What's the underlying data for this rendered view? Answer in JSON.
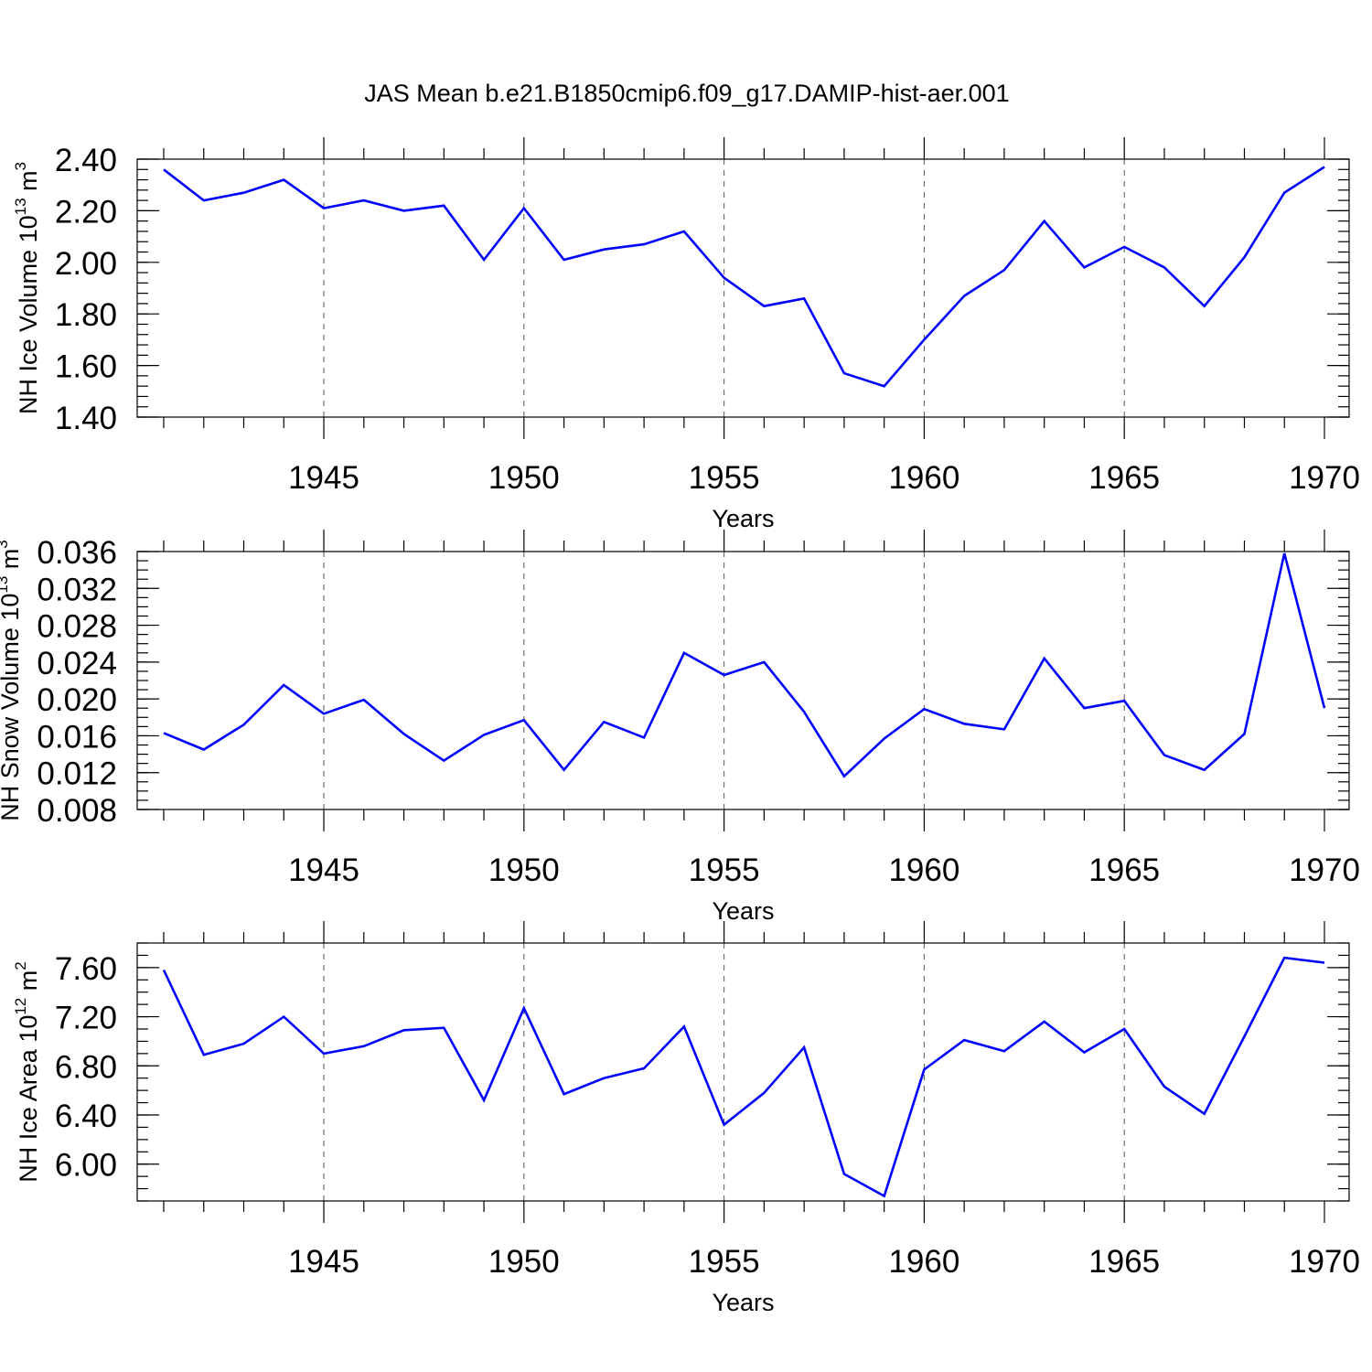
{
  "title": "JAS Mean b.e21.B1850cmip6.f09_g17.DAMIP-hist-aer.001",
  "colors": {
    "series": "#0000ff",
    "axes": "#000000",
    "grid": "#555555"
  },
  "panels": [
    {
      "ylabel": {
        "text": "NH Ice Volume 10",
        "exp": "13",
        "unit": " m",
        "unit_exp": "3"
      },
      "xlabel": "Years"
    },
    {
      "ylabel": {
        "text": "NH Snow Volume 10",
        "exp": "13",
        "unit": " m",
        "unit_exp": "3"
      },
      "xlabel": "Years"
    },
    {
      "ylabel": {
        "text": "NH Ice Area 10",
        "exp": "12",
        "unit": " m",
        "unit_exp": "2"
      },
      "xlabel": "Years"
    }
  ],
  "chart_data": [
    {
      "type": "line",
      "title": "JAS Mean b.e21.B1850cmip6.f09_g17.DAMIP-hist-aer.001",
      "xlabel": "Years",
      "ylabel": "NH Ice Volume 10^13 m^3",
      "xlim": [
        1941,
        1970
      ],
      "ylim": [
        1.4,
        2.4
      ],
      "x_ticks": [
        1945,
        1950,
        1955,
        1960,
        1965,
        1970
      ],
      "x_minor_step": 1,
      "y_ticks": [
        1.4,
        1.6,
        1.8,
        2.0,
        2.2,
        2.4
      ],
      "y_tick_labels": [
        "1.40",
        "1.60",
        "1.80",
        "2.00",
        "2.20",
        "2.40"
      ],
      "y_minor_step": 0.04,
      "grid": "vertical dashed at major x ticks",
      "series": [
        {
          "color": "#0000ff",
          "x": [
            1941,
            1942,
            1943,
            1944,
            1945,
            1946,
            1947,
            1948,
            1949,
            1950,
            1951,
            1952,
            1953,
            1954,
            1955,
            1956,
            1957,
            1958,
            1959,
            1960,
            1961,
            1962,
            1963,
            1964,
            1965,
            1966,
            1967,
            1968,
            1969,
            1970
          ],
          "y": [
            2.36,
            2.24,
            2.27,
            2.32,
            2.21,
            2.24,
            2.2,
            2.22,
            2.01,
            2.21,
            2.01,
            2.05,
            2.07,
            2.12,
            1.94,
            1.83,
            1.86,
            1.57,
            1.52,
            1.7,
            1.87,
            1.97,
            2.16,
            1.98,
            2.06,
            1.98,
            1.83,
            2.02,
            2.27,
            2.37
          ]
        }
      ]
    },
    {
      "type": "line",
      "xlabel": "Years",
      "ylabel": "NH Snow Volume 10^13 m^3",
      "xlim": [
        1941,
        1970
      ],
      "ylim": [
        0.008,
        0.036
      ],
      "x_ticks": [
        1945,
        1950,
        1955,
        1960,
        1965,
        1970
      ],
      "x_minor_step": 1,
      "y_ticks": [
        0.008,
        0.012,
        0.016,
        0.02,
        0.024,
        0.028,
        0.032,
        0.036
      ],
      "y_tick_labels": [
        "0.008",
        "0.012",
        "0.016",
        "0.020",
        "0.024",
        "0.028",
        "0.032",
        "0.036"
      ],
      "y_minor_step": 0.001,
      "grid": "vertical dashed at major x ticks",
      "series": [
        {
          "color": "#0000ff",
          "x": [
            1941,
            1942,
            1943,
            1944,
            1945,
            1946,
            1947,
            1948,
            1949,
            1950,
            1951,
            1952,
            1953,
            1954,
            1955,
            1956,
            1957,
            1958,
            1959,
            1960,
            1961,
            1962,
            1963,
            1964,
            1965,
            1966,
            1967,
            1968,
            1969,
            1970
          ],
          "y": [
            0.0163,
            0.0145,
            0.0172,
            0.0215,
            0.0184,
            0.0199,
            0.0162,
            0.0133,
            0.0161,
            0.0177,
            0.0123,
            0.0175,
            0.0158,
            0.025,
            0.0226,
            0.024,
            0.0186,
            0.0116,
            0.0157,
            0.0189,
            0.0173,
            0.0167,
            0.0244,
            0.019,
            0.0198,
            0.0139,
            0.0123,
            0.0162,
            0.0358,
            0.019
          ]
        }
      ]
    },
    {
      "type": "line",
      "xlabel": "Years",
      "ylabel": "NH Ice Area 10^12 m^2",
      "xlim": [
        1941,
        1970
      ],
      "ylim": [
        5.7,
        7.8
      ],
      "x_ticks": [
        1945,
        1950,
        1955,
        1960,
        1965,
        1970
      ],
      "x_minor_step": 1,
      "y_ticks": [
        6.0,
        6.4,
        6.8,
        7.2,
        7.6
      ],
      "y_tick_labels": [
        "6.00",
        "6.40",
        "6.80",
        "7.20",
        "7.60"
      ],
      "y_minor_step": 0.1,
      "grid": "vertical dashed at major x ticks",
      "series": [
        {
          "color": "#0000ff",
          "x": [
            1941,
            1942,
            1943,
            1944,
            1945,
            1946,
            1947,
            1948,
            1949,
            1950,
            1951,
            1952,
            1953,
            1954,
            1955,
            1956,
            1957,
            1958,
            1959,
            1960,
            1961,
            1962,
            1963,
            1964,
            1965,
            1966,
            1967,
            1968,
            1969,
            1970
          ],
          "y": [
            7.58,
            6.89,
            6.98,
            7.2,
            6.9,
            6.96,
            7.09,
            7.11,
            6.52,
            7.27,
            6.57,
            6.7,
            6.78,
            7.12,
            6.32,
            6.58,
            6.95,
            5.92,
            5.74,
            6.77,
            7.01,
            6.92,
            7.16,
            6.91,
            7.1,
            6.63,
            6.41,
            7.04,
            7.68,
            7.64
          ]
        }
      ]
    }
  ]
}
